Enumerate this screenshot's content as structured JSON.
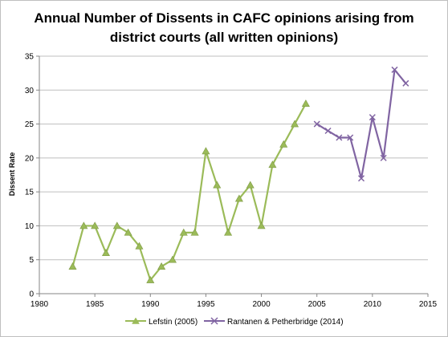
{
  "chart_data": {
    "type": "line",
    "title_lines": [
      "Annual Number of Dissents in CAFC opinions arising from",
      "district courts (all written opinions)"
    ],
    "xlabel": "",
    "ylabel": "Dissent Rate",
    "xlim": [
      1980,
      2015
    ],
    "ylim": [
      0,
      35
    ],
    "x_ticks": [
      1980,
      1985,
      1990,
      1995,
      2000,
      2005,
      2010,
      2015
    ],
    "y_ticks": [
      0,
      5,
      10,
      15,
      20,
      25,
      30,
      35
    ],
    "grid": "horizontal",
    "legend_position": "bottom",
    "series": [
      {
        "name": "Lefstin (2005)",
        "color": "#9BBB59",
        "marker": "triangle",
        "x": [
          1983,
          1984,
          1985,
          1986,
          1987,
          1988,
          1989,
          1990,
          1991,
          1992,
          1993,
          1994,
          1995,
          1996,
          1997,
          1998,
          1999,
          2000,
          2001,
          2002,
          2003,
          2004
        ],
        "y": [
          4,
          10,
          10,
          6,
          10,
          9,
          7,
          2,
          4,
          5,
          9,
          9,
          21,
          16,
          9,
          14,
          16,
          10,
          19,
          22,
          25,
          28
        ]
      },
      {
        "name": "Rantanen & Petherbridge (2014)",
        "color": "#8064A2",
        "marker": "x",
        "x": [
          2005,
          2006,
          2007,
          2008,
          2009,
          2010,
          2011,
          2012,
          2013
        ],
        "y": [
          25,
          24,
          23,
          23,
          17,
          26,
          20,
          33,
          31
        ]
      }
    ]
  }
}
